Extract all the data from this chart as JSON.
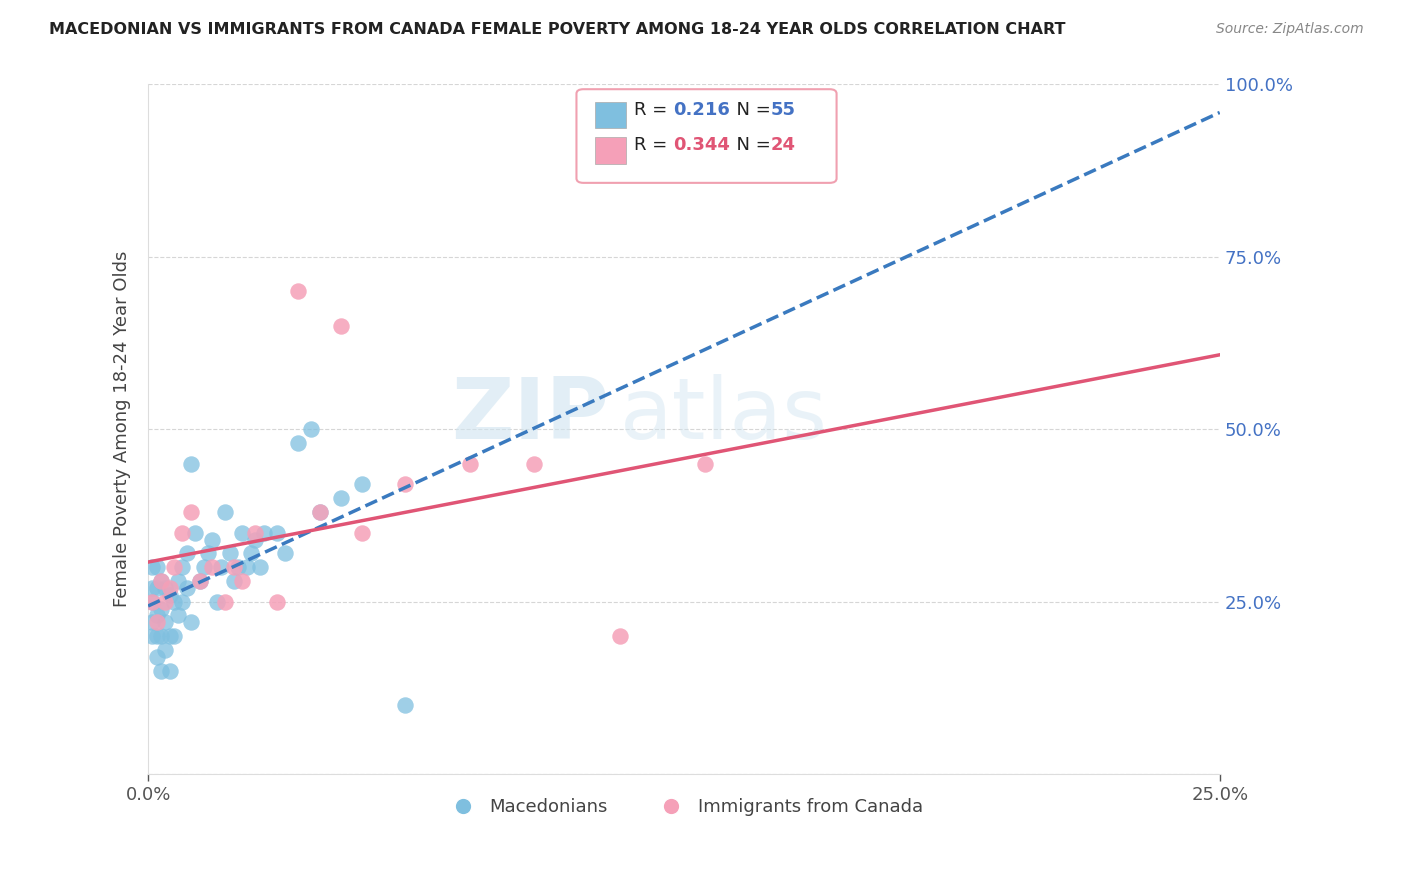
{
  "title": "MACEDONIAN VS IMMIGRANTS FROM CANADA FEMALE POVERTY AMONG 18-24 YEAR OLDS CORRELATION CHART",
  "source": "Source: ZipAtlas.com",
  "ylabel": "Female Poverty Among 18-24 Year Olds",
  "xlim": [
    0.0,
    0.25
  ],
  "ylim": [
    0.0,
    1.0
  ],
  "macedonian_color": "#7fbfdf",
  "canada_color": "#f5a0b8",
  "trend_mac_color": "#3a7abf",
  "trend_can_color": "#e05575",
  "watermark_zip": "ZIP",
  "watermark_atlas": "atlas",
  "legend_R_mac": "0.216",
  "legend_N_mac": "55",
  "legend_R_can": "0.344",
  "legend_N_can": "24",
  "macedonians_label": "Macedonians",
  "canada_label": "Immigrants from Canada",
  "mac_x": [
    0.001,
    0.001,
    0.001,
    0.001,
    0.001,
    0.002,
    0.002,
    0.002,
    0.002,
    0.002,
    0.003,
    0.003,
    0.003,
    0.003,
    0.004,
    0.004,
    0.004,
    0.005,
    0.005,
    0.005,
    0.006,
    0.006,
    0.007,
    0.007,
    0.008,
    0.008,
    0.009,
    0.009,
    0.01,
    0.01,
    0.011,
    0.012,
    0.013,
    0.014,
    0.015,
    0.016,
    0.017,
    0.018,
    0.019,
    0.02,
    0.021,
    0.022,
    0.023,
    0.024,
    0.025,
    0.026,
    0.027,
    0.03,
    0.032,
    0.035,
    0.038,
    0.04,
    0.045,
    0.05,
    0.06
  ],
  "mac_y": [
    0.2,
    0.22,
    0.25,
    0.27,
    0.3,
    0.17,
    0.2,
    0.23,
    0.27,
    0.3,
    0.15,
    0.2,
    0.24,
    0.28,
    0.18,
    0.22,
    0.27,
    0.15,
    0.2,
    0.26,
    0.2,
    0.25,
    0.23,
    0.28,
    0.25,
    0.3,
    0.27,
    0.32,
    0.22,
    0.45,
    0.35,
    0.28,
    0.3,
    0.32,
    0.34,
    0.25,
    0.3,
    0.38,
    0.32,
    0.28,
    0.3,
    0.35,
    0.3,
    0.32,
    0.34,
    0.3,
    0.35,
    0.35,
    0.32,
    0.48,
    0.5,
    0.38,
    0.4,
    0.42,
    0.1
  ],
  "can_x": [
    0.001,
    0.002,
    0.003,
    0.004,
    0.005,
    0.006,
    0.008,
    0.01,
    0.012,
    0.015,
    0.018,
    0.02,
    0.022,
    0.025,
    0.03,
    0.035,
    0.04,
    0.045,
    0.05,
    0.06,
    0.075,
    0.09,
    0.11,
    0.13
  ],
  "can_y": [
    0.25,
    0.22,
    0.28,
    0.25,
    0.27,
    0.3,
    0.35,
    0.38,
    0.28,
    0.3,
    0.25,
    0.3,
    0.28,
    0.35,
    0.25,
    0.7,
    0.38,
    0.65,
    0.35,
    0.42,
    0.45,
    0.45,
    0.2,
    0.45
  ],
  "background_color": "#ffffff",
  "grid_color": "#cccccc",
  "label_color": "#4472c4",
  "tick_color": "#555555"
}
